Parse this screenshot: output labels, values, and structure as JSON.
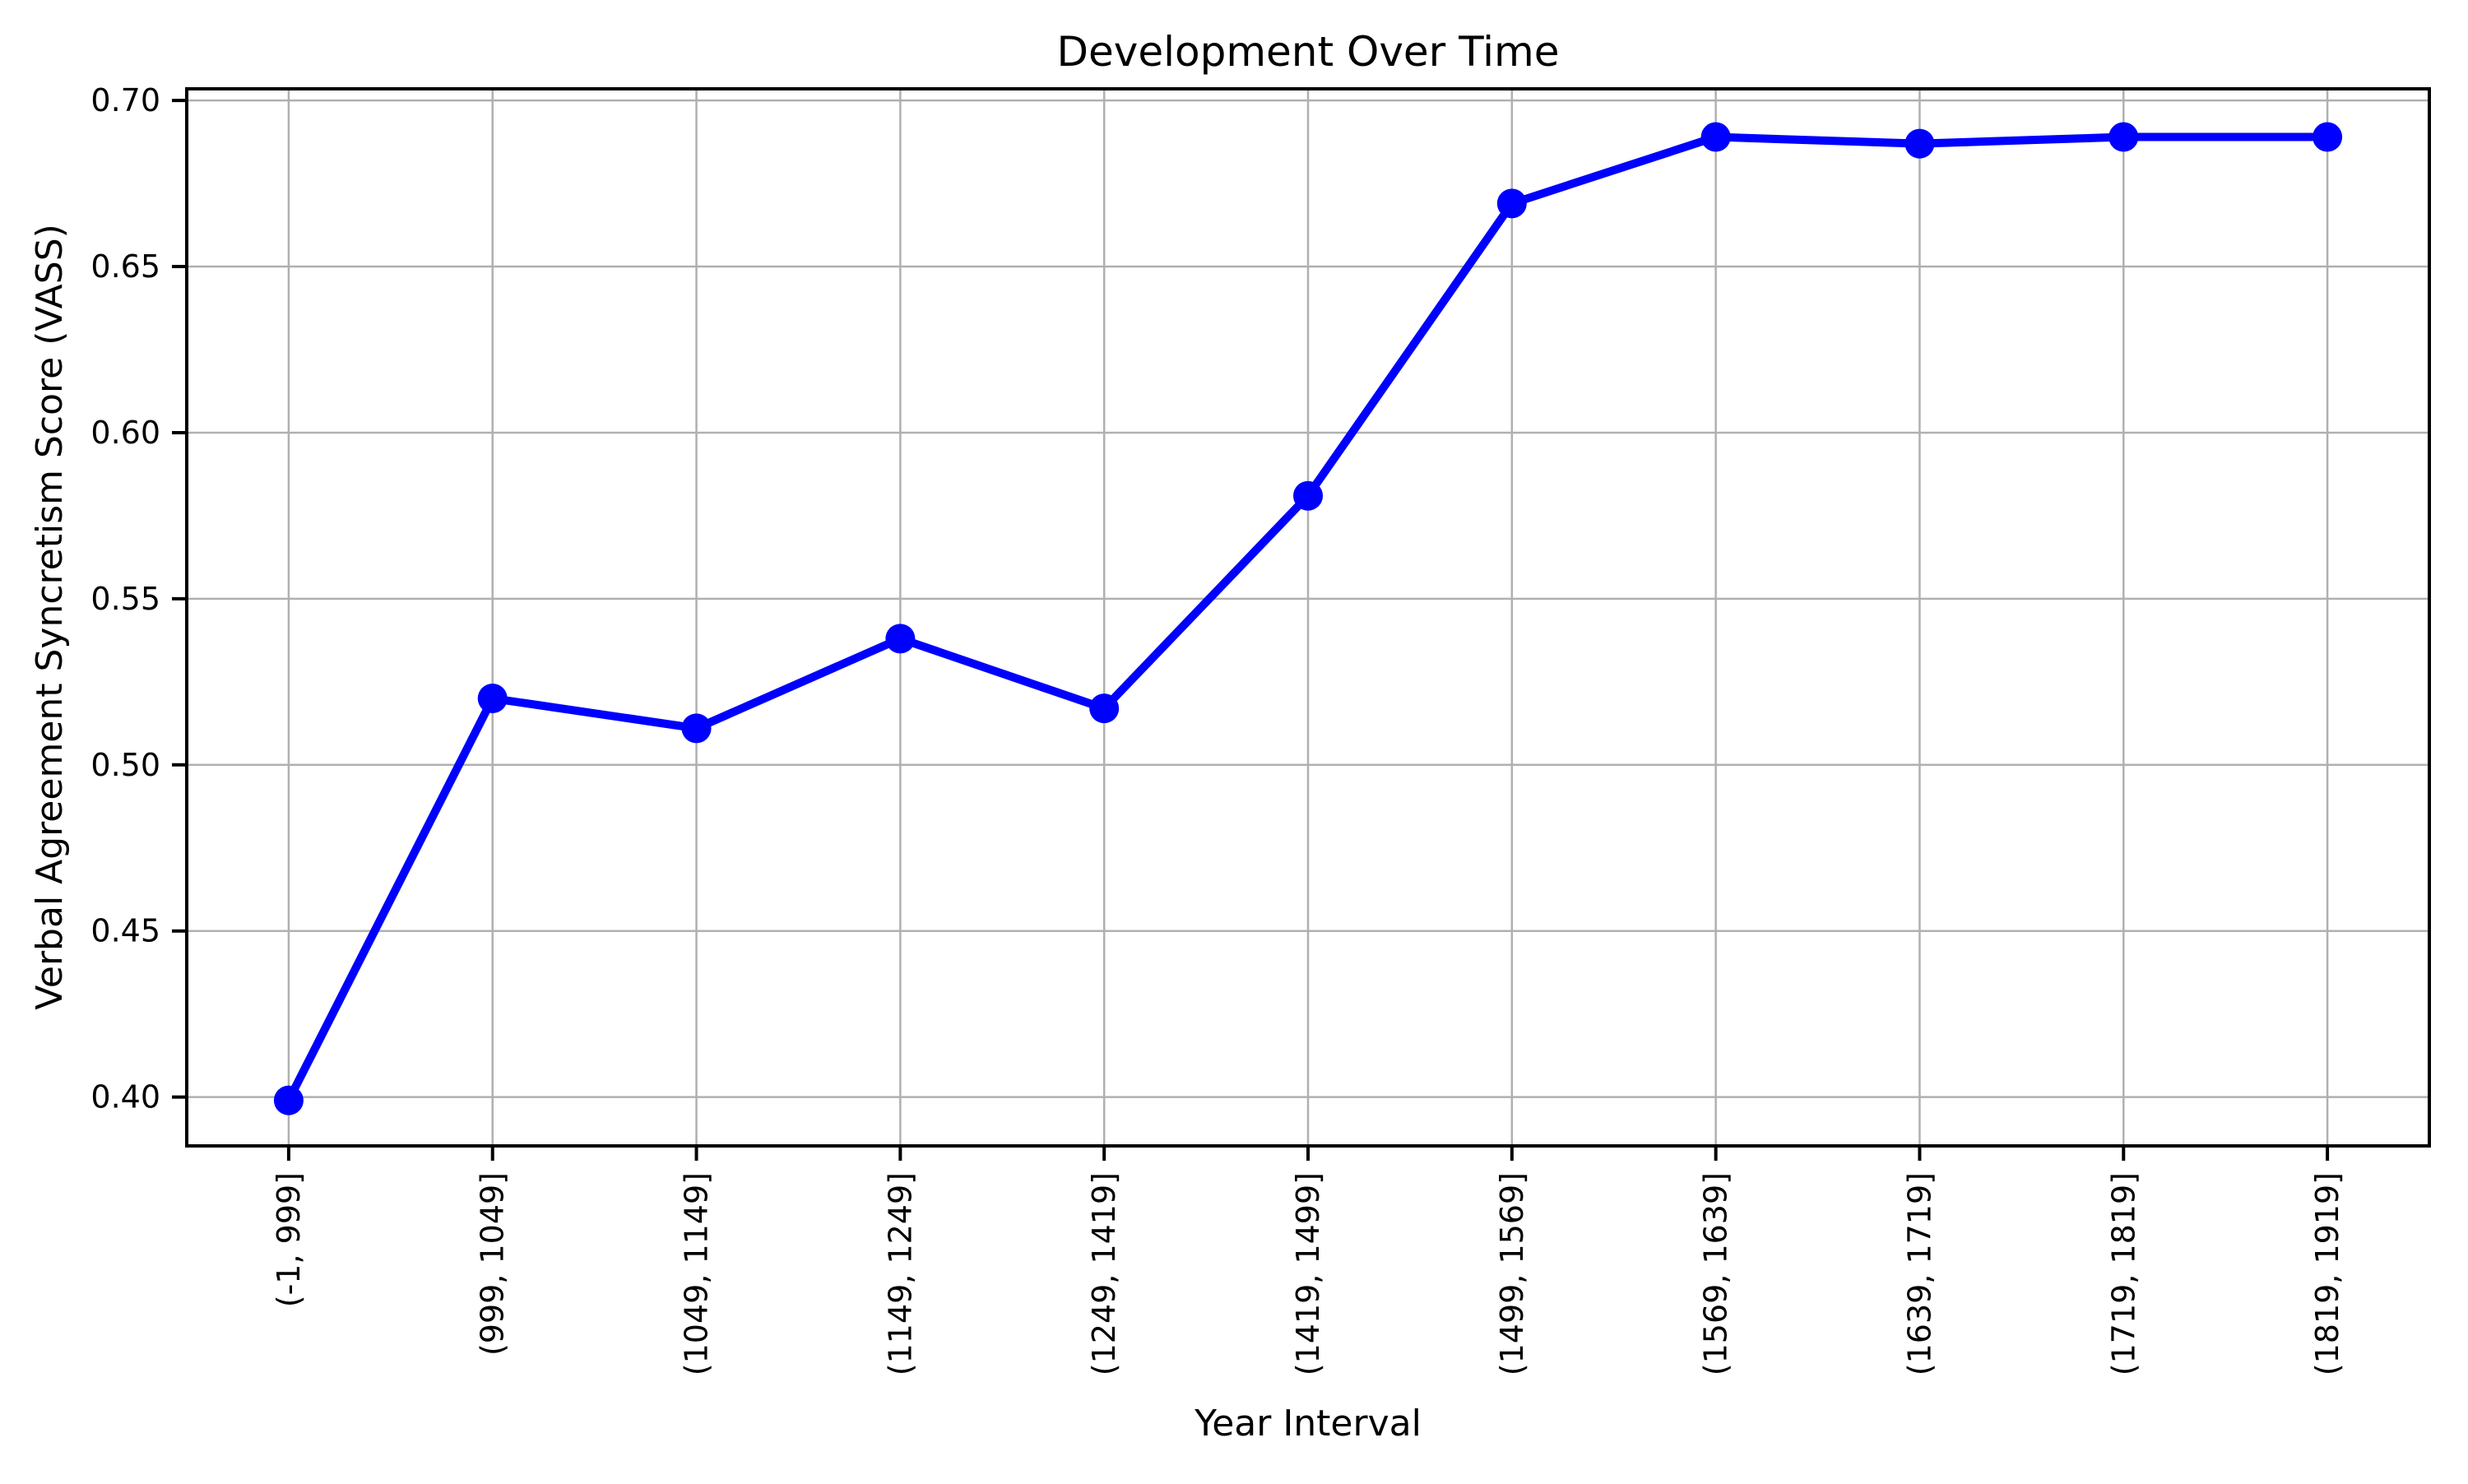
{
  "figure": {
    "background_color": "#ffffff"
  },
  "chart_data": {
    "type": "line",
    "title": "Development Over Time",
    "xlabel": "Year Interval",
    "ylabel": "Verbal Agreement Syncretism Score (VASS)",
    "categories": [
      "(-1, 999]",
      "(999, 1049]",
      "(1049, 1149]",
      "(1149, 1249]",
      "(1249, 1419]",
      "(1419, 1499]",
      "(1499, 1569]",
      "(1569, 1639]",
      "(1639, 1719]",
      "(1719, 1819]",
      "(1819, 1919]"
    ],
    "values": [
      0.399,
      0.52,
      0.511,
      0.538,
      0.517,
      0.581,
      0.669,
      0.689,
      0.687,
      0.689,
      0.689
    ],
    "yticks": [
      0.4,
      0.45,
      0.5,
      0.55,
      0.6,
      0.65,
      0.7
    ],
    "ytick_labels": [
      "0.40",
      "0.45",
      "0.50",
      "0.55",
      "0.60",
      "0.65",
      "0.70"
    ],
    "ylim": [
      0.3853,
      0.7035
    ],
    "grid": true,
    "legend_position": "none",
    "line_color": "#0000ff",
    "marker": "circle",
    "grid_color": "#b0b0b0",
    "spine_color": "#000000",
    "text_color": "#000000"
  }
}
